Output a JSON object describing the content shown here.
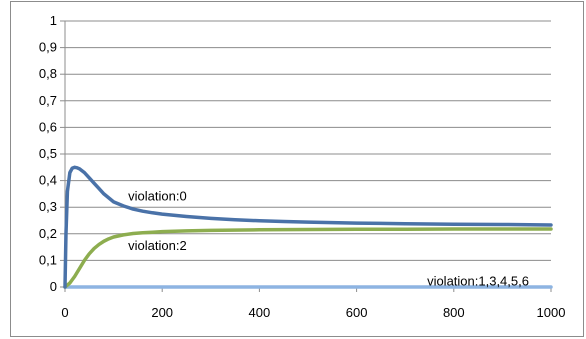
{
  "chart_data": {
    "type": "line",
    "title": "",
    "xlabel": "",
    "ylabel": "",
    "xlim": [
      0,
      1000
    ],
    "ylim": [
      0,
      1
    ],
    "x_ticks": [
      0,
      200,
      400,
      600,
      800,
      1000
    ],
    "x_tick_labels": [
      "0",
      "200",
      "400",
      "600",
      "800",
      "1000"
    ],
    "y_ticks": [
      0,
      0.1,
      0.2,
      0.3,
      0.4,
      0.5,
      0.6,
      0.7,
      0.8,
      0.9,
      1
    ],
    "y_tick_labels": [
      "0",
      "0,1",
      "0,2",
      "0,3",
      "0,4",
      "0,5",
      "0,6",
      "0,7",
      "0,8",
      "0,9",
      "1"
    ],
    "grid": "horizontal",
    "legend": "none",
    "series": [
      {
        "name": "violation:0",
        "color": "#4a72a8",
        "x": [
          0,
          2,
          5,
          10,
          15,
          20,
          25,
          30,
          40,
          50,
          60,
          70,
          80,
          90,
          100,
          120,
          140,
          160,
          180,
          200,
          250,
          300,
          350,
          400,
          450,
          500,
          600,
          700,
          800,
          900,
          1000
        ],
        "y": [
          0,
          0.2,
          0.36,
          0.43,
          0.447,
          0.45,
          0.448,
          0.444,
          0.43,
          0.41,
          0.39,
          0.37,
          0.35,
          0.335,
          0.32,
          0.305,
          0.293,
          0.285,
          0.279,
          0.274,
          0.265,
          0.258,
          0.253,
          0.249,
          0.246,
          0.244,
          0.24,
          0.238,
          0.236,
          0.235,
          0.233
        ]
      },
      {
        "name": "violation:2",
        "color": "#8dad4f",
        "x": [
          0,
          10,
          20,
          30,
          40,
          50,
          60,
          70,
          80,
          90,
          100,
          120,
          140,
          160,
          180,
          200,
          250,
          300,
          400,
          500,
          600,
          700,
          800,
          900,
          1000
        ],
        "y": [
          0,
          0.015,
          0.04,
          0.07,
          0.1,
          0.125,
          0.145,
          0.16,
          0.172,
          0.181,
          0.188,
          0.196,
          0.201,
          0.204,
          0.206,
          0.208,
          0.211,
          0.213,
          0.215,
          0.216,
          0.217,
          0.217,
          0.218,
          0.218,
          0.218
        ]
      },
      {
        "name": "violation:1,3,4,5,6",
        "color": "#8db4e2",
        "x": [
          0,
          1000
        ],
        "y": [
          0,
          0
        ]
      }
    ],
    "annotations": [
      {
        "text": "violation:0",
        "x": 130,
        "y": 0.34
      },
      {
        "text": "violation:2",
        "x": 130,
        "y": 0.155
      },
      {
        "text": "violation:1,3,4,5,6",
        "x": 745,
        "y": 0.02
      }
    ]
  }
}
